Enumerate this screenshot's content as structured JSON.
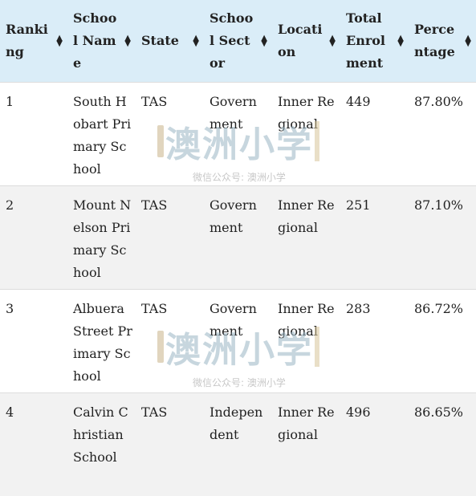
{
  "table": {
    "headers": [
      "Ranking",
      "School Name",
      "State",
      "School Sector",
      "Location",
      "Total Enrolment",
      "Percentage"
    ],
    "rows": [
      [
        "1",
        "South Hobart Primary School",
        "TAS",
        "Government",
        "Inner Regional",
        "449",
        "87.80%"
      ],
      [
        "2",
        "Mount Nelson Primary School",
        "TAS",
        "Government",
        "Inner Regional",
        "251",
        "87.10%"
      ],
      [
        "3",
        "Albuera Street Primary School",
        "TAS",
        "Government",
        "Inner Regional",
        "283",
        "86.72%"
      ],
      [
        "4",
        "Calvin Christian School",
        "TAS",
        "Independent",
        "Inner Regional",
        "496",
        "86.65%"
      ]
    ]
  },
  "watermark": {
    "main": "澳洲小学",
    "sub": "微信公众号: 澳洲小学"
  },
  "sort_icon": "sort-arrows-icon"
}
